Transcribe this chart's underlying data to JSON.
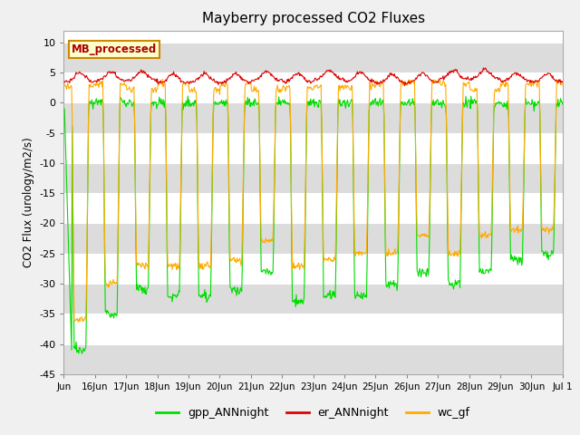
{
  "title": "Mayberry processed CO2 Fluxes",
  "ylabel": "CO2 Flux (urology/m2/s)",
  "ylim": [
    -45,
    12
  ],
  "yticks": [
    10,
    5,
    0,
    -5,
    -10,
    -15,
    -20,
    -25,
    -30,
    -35,
    -40,
    -45
  ],
  "bg_color": "#f0f0f0",
  "plot_bg": "#ffffff",
  "band_color": "#dcdcdc",
  "line_colors": {
    "gpp": "#00dd00",
    "er": "#dd0000",
    "wc": "#ffaa00"
  },
  "legend_labels": [
    "gpp_ANNnight",
    "er_ANNnight",
    "wc_gf"
  ],
  "box_label": "MB_processed",
  "box_facecolor": "#ffffcc",
  "box_edgecolor": "#cc8800",
  "box_textcolor": "#aa0000",
  "n_days": 16,
  "points_per_day": 48,
  "figwidth": 6.4,
  "figheight": 4.8,
  "dpi": 100
}
